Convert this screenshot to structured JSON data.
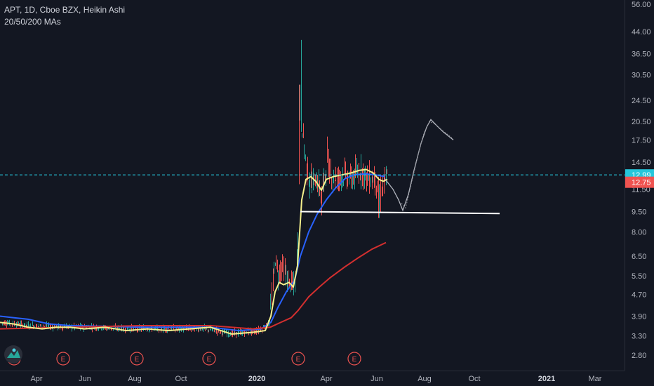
{
  "header": {
    "symbol_line": "APT, 1D, Cboe BZX, Heikin Ashi",
    "indicator_line": "20/50/200 MAs"
  },
  "colors": {
    "background": "#131722",
    "up": "#26a69a",
    "down": "#ef5350",
    "ma20": "#f5f08c",
    "ma50": "#2962ff",
    "ma200": "#d32f2f",
    "current_price_line": "#26c6da",
    "trendline": "#ffffff",
    "projection": "#b2b5be"
  },
  "price_badges": {
    "current": "12.99",
    "secondary": "12.75"
  },
  "earnings_marker_label": "E",
  "logo_icon": "tradingview-logo-icon",
  "chart_data": {
    "type": "candlestick",
    "scale": "log",
    "y_ticks": [
      "56.00",
      "44.00",
      "36.50",
      "30.50",
      "24.50",
      "20.50",
      "17.50",
      "14.50",
      "11.50",
      "9.50",
      "8.00",
      "6.50",
      "5.50",
      "4.70",
      "3.90",
      "3.30",
      "2.80"
    ],
    "x_ticks": [
      "Apr",
      "Jun",
      "Aug",
      "Oct",
      "2020",
      "Apr",
      "Jun",
      "Aug",
      "Oct",
      "2021",
      "Mar"
    ],
    "bold_x_ticks": [
      "2020",
      "2021"
    ],
    "series": [
      {
        "name": "20",
        "type": "line"
      },
      {
        "name": "50",
        "type": "line"
      },
      {
        "name": "200",
        "type": "line"
      }
    ],
    "current_price": 12.99,
    "horizontal_trendline": 9.5,
    "earnings_events": 6,
    "grid": false
  }
}
